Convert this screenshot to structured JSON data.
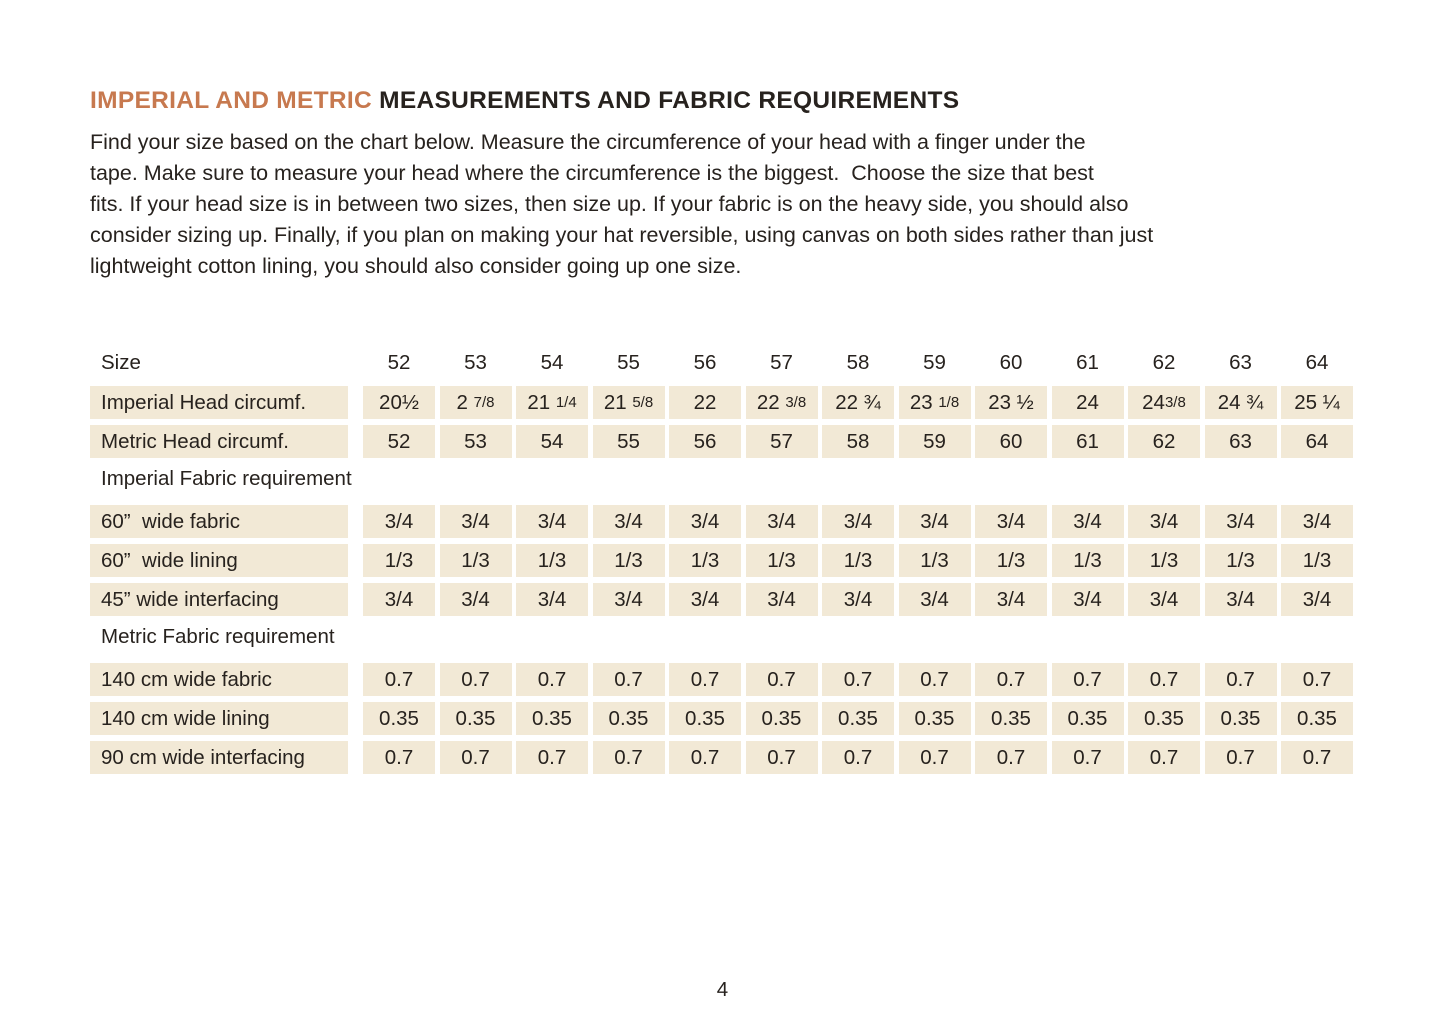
{
  "colors": {
    "accent": "#c7794f",
    "text": "#27221e",
    "cell_bg": "#f2e9d6",
    "page_bg": "#ffffff"
  },
  "heading": {
    "accent": "IMPERIAL AND METRIC ",
    "rest": "MEASUREMENTS AND FABRIC REQUIREMENTS"
  },
  "intro_lines": [
    "Find your size based on the chart below. Measure the circumference of your head with a finger under the",
    "tape. Make sure to measure your head where the circumference is the biggest.  Choose the size that best",
    "fits. If your head size is in between two sizes, then size up. If your fabric is on the heavy side, you should also",
    "consider sizing up. Finally, if you plan on making your hat reversible, using canvas on both sides rather than just",
    "lightweight cotton lining, you should also consider going up one size."
  ],
  "table": {
    "size_row": {
      "label": "Size",
      "values": [
        "52",
        "53",
        "54",
        "55",
        "56",
        "57",
        "58",
        "59",
        "60",
        "61",
        "62",
        "63",
        "64"
      ]
    },
    "rows": [
      {
        "type": "data",
        "name": "imperial-head-circumference",
        "label": "Imperial Head circumf.",
        "values": [
          "20½",
          [
            "2 ",
            "7/8"
          ],
          [
            "21 ",
            "1/4"
          ],
          [
            "21 ",
            "5/8"
          ],
          "22",
          [
            "22 ",
            "3/8"
          ],
          "22 ¾",
          [
            "23 ",
            "1/8"
          ],
          "23 ½",
          "24",
          [
            "24",
            "3/8"
          ],
          "24 ¾",
          "25 ¼"
        ]
      },
      {
        "type": "data",
        "name": "metric-head-circumference",
        "label": "Metric Head circumf.",
        "values": [
          "52",
          "53",
          "54",
          "55",
          "56",
          "57",
          "58",
          "59",
          "60",
          "61",
          "62",
          "63",
          "64"
        ]
      },
      {
        "type": "section",
        "name": "imperial-fabric-requirement",
        "label": "Imperial Fabric requirement"
      },
      {
        "type": "data",
        "name": "60in-wide-fabric",
        "label": "60”  wide fabric",
        "values": [
          "3/4",
          "3/4",
          "3/4",
          "3/4",
          "3/4",
          "3/4",
          "3/4",
          "3/4",
          "3/4",
          "3/4",
          "3/4",
          "3/4",
          "3/4"
        ]
      },
      {
        "type": "data",
        "name": "60in-wide-lining",
        "label": "60”  wide lining",
        "values": [
          "1/3",
          "1/3",
          "1/3",
          "1/3",
          "1/3",
          "1/3",
          "1/3",
          "1/3",
          "1/3",
          "1/3",
          "1/3",
          "1/3",
          "1/3"
        ]
      },
      {
        "type": "data",
        "name": "45in-wide-interfacing",
        "label": "45” wide interfacing",
        "values": [
          "3/4",
          "3/4",
          "3/4",
          "3/4",
          "3/4",
          "3/4",
          "3/4",
          "3/4",
          "3/4",
          "3/4",
          "3/4",
          "3/4",
          "3/4"
        ]
      },
      {
        "type": "section",
        "name": "metric-fabric-requirement",
        "label": "Metric Fabric requirement"
      },
      {
        "type": "data",
        "name": "140cm-wide-fabric",
        "label": "140 cm wide fabric",
        "values": [
          "0.7",
          "0.7",
          "0.7",
          "0.7",
          "0.7",
          "0.7",
          "0.7",
          "0.7",
          "0.7",
          "0.7",
          "0.7",
          "0.7",
          "0.7"
        ]
      },
      {
        "type": "data",
        "name": "140cm-wide-lining",
        "label": "140 cm wide lining",
        "values": [
          "0.35",
          "0.35",
          "0.35",
          "0.35",
          "0.35",
          "0.35",
          "0.35",
          "0.35",
          "0.35",
          "0.35",
          "0.35",
          "0.35",
          "0.35"
        ]
      },
      {
        "type": "data",
        "name": "90cm-wide-interfacing",
        "label": "90 cm wide interfacing",
        "values": [
          "0.7",
          "0.7",
          "0.7",
          "0.7",
          "0.7",
          "0.7",
          "0.7",
          "0.7",
          "0.7",
          "0.7",
          "0.7",
          "0.7",
          "0.7"
        ]
      }
    ]
  },
  "page": {
    "number": "4"
  }
}
